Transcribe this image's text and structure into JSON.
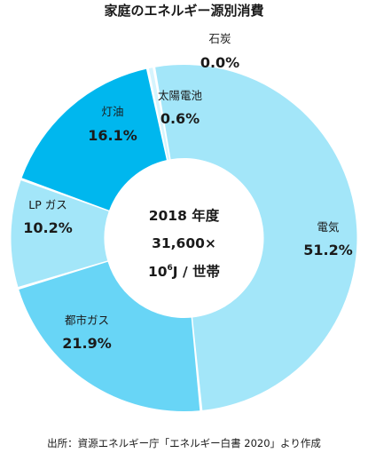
{
  "chart_data": {
    "type": "pie",
    "title": "家庭のエネルギー源別消費",
    "center": {
      "line1": "2018 年度",
      "line2": "31,600×",
      "line3_base": "10",
      "line3_exp": "6",
      "line3_rest": "J / 世帯"
    },
    "slices": [
      {
        "label": "電気",
        "value": 51.2,
        "display": "51.2%",
        "color": "#a3e6f9"
      },
      {
        "label": "都市ガス",
        "value": 21.9,
        "display": "21.9%",
        "color": "#68d5f6"
      },
      {
        "label": "LP ガス",
        "value": 10.2,
        "display": "10.2%",
        "color": "#a3e6f9"
      },
      {
        "label": "灯油",
        "value": 16.1,
        "display": "16.1%",
        "color": "#00b7ee"
      },
      {
        "label": "太陽電池",
        "value": 0.6,
        "display": "0.6%",
        "color": "#d6f4fd"
      },
      {
        "label": "石炭",
        "value": 0.0,
        "display": "0.0%",
        "color": "#ffffff"
      }
    ],
    "source": "出所：資源エネルギー庁「エネルギー白書 2020」より作成"
  }
}
